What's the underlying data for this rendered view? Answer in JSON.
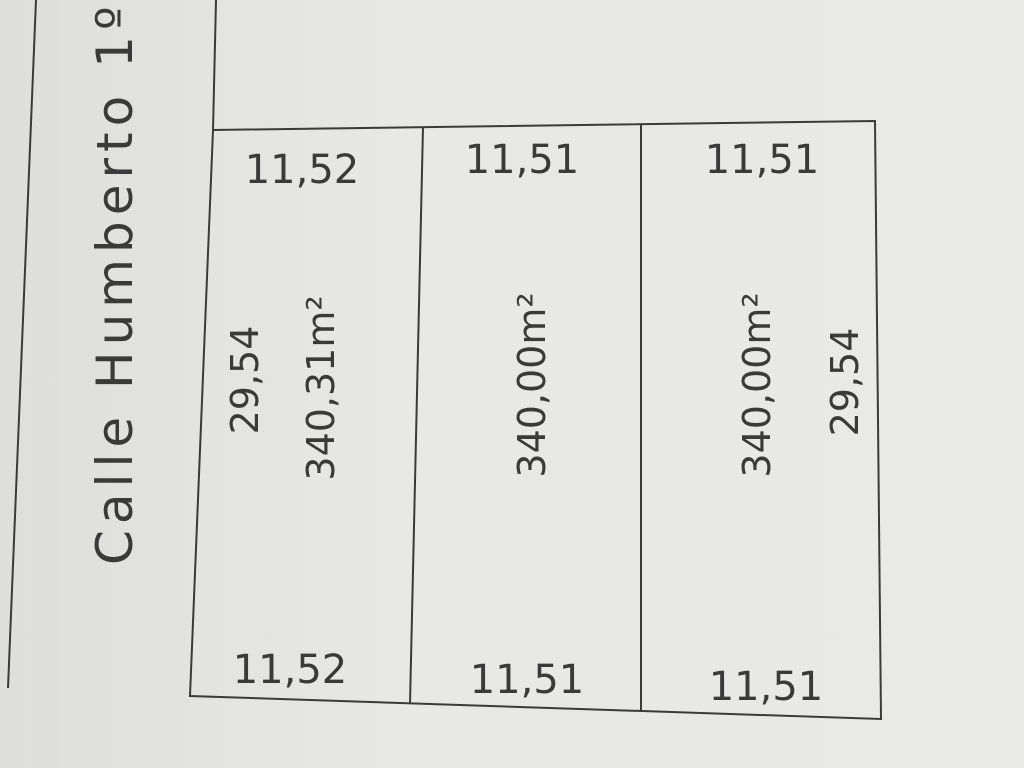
{
  "street": {
    "name": "Calle Humberto 1º"
  },
  "lots": [
    {
      "front_top": "11,52",
      "front_bottom": "11,52",
      "side": "29,54",
      "area": "340,31m²"
    },
    {
      "front_top": "11,51",
      "front_bottom": "11,51",
      "area": "340,00m²"
    },
    {
      "front_top": "11,51",
      "front_bottom": "11,51",
      "side": "29,54",
      "area": "340,00m²"
    }
  ],
  "line_color": "#3a3a3a"
}
